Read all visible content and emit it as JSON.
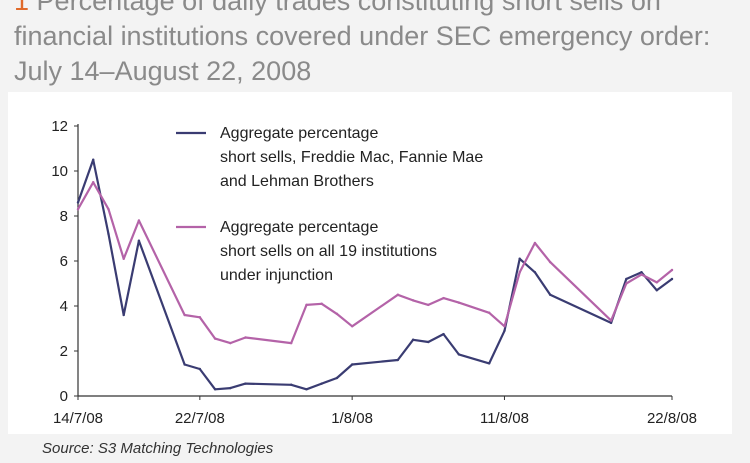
{
  "title": {
    "bullet": "1",
    "text": "Percentage of daily trades constituting short sells on financial institutions covered under SEC emergency order: July 14–August 22, 2008"
  },
  "source": "Source: S3 Matching Technologies",
  "chart_data": {
    "type": "line",
    "ylim": [
      0,
      12
    ],
    "xlim": [
      "2008-07-14",
      "2008-08-22"
    ],
    "yticks": [
      "0",
      "2",
      "4",
      "6",
      "8",
      "10",
      "12"
    ],
    "xticks": [
      {
        "date": "2008-07-14",
        "label": "14/7/08"
      },
      {
        "date": "2008-07-22",
        "label": "22/7/08"
      },
      {
        "date": "2008-08-01",
        "label": "1/8/08"
      },
      {
        "date": "2008-08-11",
        "label": "11/8/08"
      },
      {
        "date": "2008-08-22",
        "label": "22/8/08"
      }
    ],
    "series": [
      {
        "name": "Aggregate percentage short sells, Freddie Mac, Fannie Mae and Lehman Brothers",
        "legend_lines": [
          "Aggregate percentage",
          "short sells, Freddie Mac, Fannie Mae",
          "and Lehman Brothers"
        ],
        "color": "#3a3c72",
        "x": [
          "2008-07-14",
          "2008-07-15",
          "2008-07-16",
          "2008-07-17",
          "2008-07-18",
          "2008-07-21",
          "2008-07-22",
          "2008-07-23",
          "2008-07-24",
          "2008-07-25",
          "2008-07-28",
          "2008-07-29",
          "2008-07-30",
          "2008-07-31",
          "2008-08-01",
          "2008-08-04",
          "2008-08-05",
          "2008-08-06",
          "2008-08-07",
          "2008-08-08",
          "2008-08-10",
          "2008-08-11",
          "2008-08-12",
          "2008-08-13",
          "2008-08-14",
          "2008-08-18",
          "2008-08-19",
          "2008-08-20",
          "2008-08-21",
          "2008-08-22"
        ],
        "values": [
          8.6,
          10.5,
          7.2,
          3.6,
          6.9,
          1.4,
          1.2,
          0.3,
          0.35,
          0.55,
          0.5,
          0.3,
          0.55,
          0.8,
          1.4,
          1.6,
          2.5,
          2.4,
          2.75,
          1.85,
          1.45,
          2.9,
          6.1,
          5.5,
          4.5,
          3.25,
          5.2,
          5.5,
          4.7,
          5.2
        ]
      },
      {
        "name": "Aggregate percentage short sells on all 19 institutions under injunction",
        "legend_lines": [
          "Aggregate percentage",
          "short sells on all 19 institutions",
          "under injunction"
        ],
        "color": "#b463a8",
        "x": [
          "2008-07-14",
          "2008-07-15",
          "2008-07-16",
          "2008-07-17",
          "2008-07-18",
          "2008-07-21",
          "2008-07-22",
          "2008-07-23",
          "2008-07-24",
          "2008-07-25",
          "2008-07-28",
          "2008-07-29",
          "2008-07-30",
          "2008-07-31",
          "2008-08-01",
          "2008-08-04",
          "2008-08-05",
          "2008-08-06",
          "2008-08-07",
          "2008-08-08",
          "2008-08-10",
          "2008-08-11",
          "2008-08-12",
          "2008-08-13",
          "2008-08-14",
          "2008-08-18",
          "2008-08-19",
          "2008-08-20",
          "2008-08-21",
          "2008-08-22"
        ],
        "values": [
          8.3,
          9.5,
          8.3,
          6.1,
          7.8,
          3.6,
          3.5,
          2.55,
          2.35,
          2.6,
          2.35,
          4.05,
          4.1,
          3.65,
          3.1,
          4.5,
          4.25,
          4.05,
          4.35,
          4.15,
          3.7,
          3.1,
          5.5,
          6.8,
          5.95,
          3.35,
          5.0,
          5.4,
          5.05,
          5.6
        ]
      }
    ],
    "legend_position": "top-left inside plot",
    "grid": false
  }
}
